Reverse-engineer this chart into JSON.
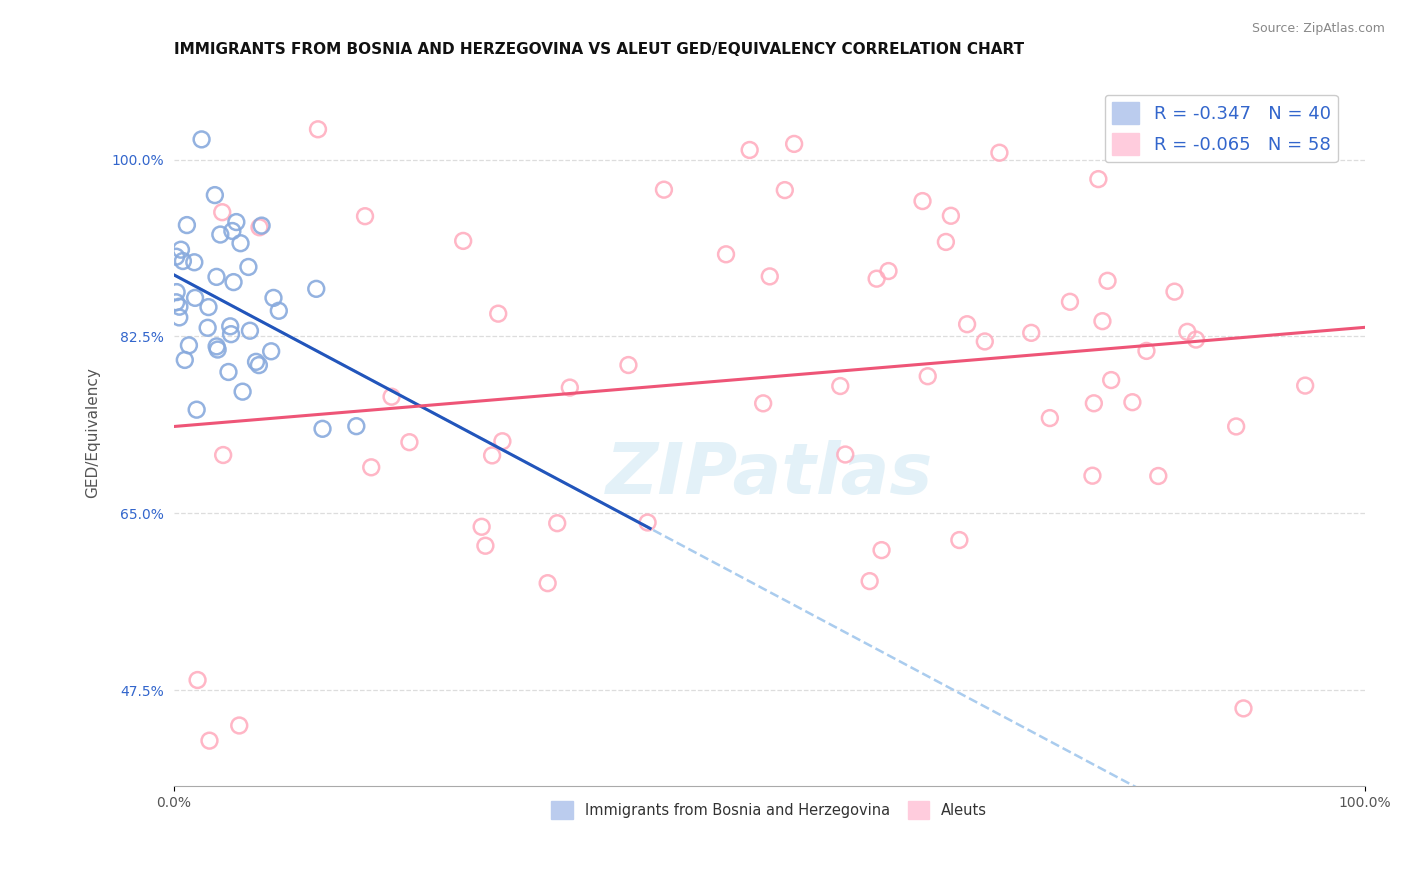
{
  "title": "IMMIGRANTS FROM BOSNIA AND HERZEGOVINA VS ALEUT GED/EQUIVALENCY CORRELATION CHART",
  "source": "Source: ZipAtlas.com",
  "ylabel": "GED/Equivalency",
  "yticks": [
    47.5,
    65.0,
    82.5,
    100.0
  ],
  "ytick_labels": [
    "47.5%",
    "65.0%",
    "82.5%",
    "100.0%"
  ],
  "xtick_labels": [
    "0.0%",
    "100.0%"
  ],
  "xlim": [
    0.0,
    100.0
  ],
  "ylim": [
    38.0,
    108.0
  ],
  "blue_R": -0.347,
  "blue_N": 40,
  "pink_R": -0.065,
  "pink_N": 58,
  "blue_scatter_color": "#88AADD",
  "pink_scatter_color": "#FFAABC",
  "blue_line_color": "#2255BB",
  "pink_line_color": "#EE5577",
  "blue_dash_color": "#AACCEE",
  "legend_label_blue": "Immigrants from Bosnia and Herzegovina",
  "legend_label_pink": "Aleuts",
  "legend_box_blue": "#BBCCEE",
  "legend_box_pink": "#FFCCDD",
  "watermark": "ZIPatlas",
  "grid_color": "#DDDDDD",
  "title_color": "#111111",
  "source_color": "#888888",
  "ylabel_color": "#555555",
  "ytick_color": "#3366CC",
  "xtick_color": "#555555",
  "legend_label_color": "#3366CC",
  "bottom_legend_color": "#333333"
}
